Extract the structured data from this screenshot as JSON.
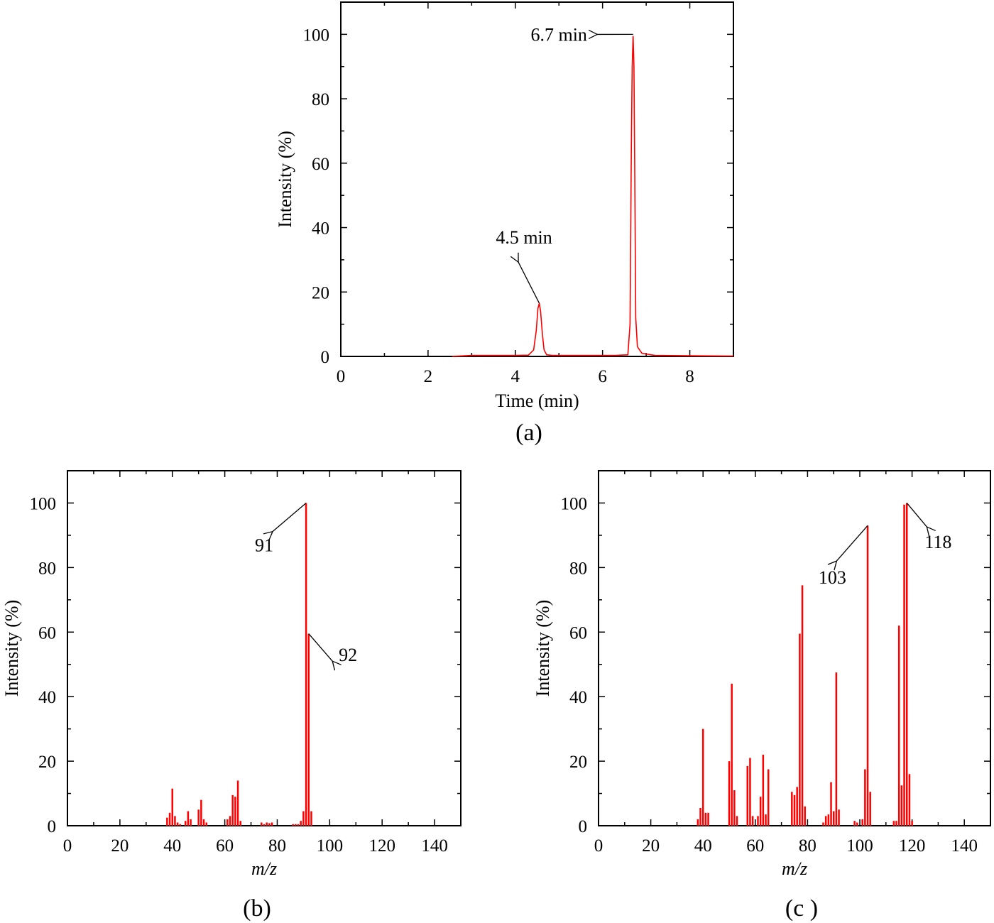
{
  "colors": {
    "series": "#ff0000",
    "axis": "#000000",
    "annotation": "#000000"
  },
  "chart_data": [
    {
      "id": "a",
      "type": "line",
      "panel_label": "(a)",
      "xlabel": "Time (min)",
      "ylabel": "Intensity (%)",
      "xlim": [
        0,
        9
      ],
      "ylim": [
        0,
        110
      ],
      "xticks": [
        0,
        2,
        4,
        6,
        8
      ],
      "yticks": [
        0,
        20,
        40,
        60,
        80,
        100
      ],
      "grid": false,
      "series": [
        {
          "x": [
            2.55,
            3.0,
            3.5,
            4.0,
            4.3,
            4.42,
            4.48,
            4.52,
            4.55,
            4.58,
            4.62,
            4.66,
            4.72,
            4.85,
            5.2,
            5.8,
            6.3,
            6.58,
            6.63,
            6.66,
            6.68,
            6.7,
            6.72,
            6.74,
            6.76,
            6.8,
            6.9,
            7.2,
            8.0,
            9.0
          ],
          "y": [
            0,
            0.3,
            0.3,
            0.3,
            0.4,
            2,
            8,
            15,
            16.5,
            14,
            7,
            2,
            0.5,
            0.3,
            0.3,
            0.3,
            0.3,
            0.5,
            10,
            65,
            90,
            99.5,
            90,
            55,
            12,
            3,
            1,
            0.3,
            0.2,
            0.1
          ]
        }
      ],
      "annotations": [
        {
          "text": "6.7 min",
          "x": 6.7,
          "y": 100,
          "text_x": 5.0,
          "text_y": 98
        },
        {
          "text": "4.5 min",
          "x": 4.55,
          "y": 16.5,
          "text_x": 4.2,
          "text_y": 35
        }
      ]
    },
    {
      "id": "b",
      "type": "bar",
      "panel_label": "(b)",
      "xlabel": "m/z",
      "ylabel": "Intensity (%)",
      "xlim": [
        0,
        150
      ],
      "ylim": [
        0,
        110
      ],
      "xticks": [
        0,
        20,
        40,
        60,
        80,
        100,
        120,
        140
      ],
      "yticks": [
        0,
        20,
        40,
        60,
        80,
        100
      ],
      "grid": false,
      "series": [
        {
          "x": [
            38,
            39,
            40,
            41,
            42,
            43,
            45,
            46,
            47,
            50,
            51,
            52,
            53,
            61,
            62,
            63,
            64,
            65,
            66,
            74,
            75,
            76,
            77,
            78,
            86,
            87,
            88,
            89,
            90,
            91,
            92,
            93
          ],
          "y": [
            2.5,
            4,
            11.5,
            3,
            1,
            0.5,
            1.5,
            4.5,
            2,
            5,
            8,
            2,
            1,
            2,
            3,
            9.5,
            9,
            14,
            1.5,
            1,
            0.5,
            1,
            0.8,
            1,
            0.5,
            0.5,
            0.5,
            1.5,
            4.5,
            100,
            59.5,
            4.5
          ]
        }
      ],
      "annotations": [
        {
          "text": "91",
          "x": 91,
          "y": 100,
          "text_x": 75,
          "text_y": 85
        },
        {
          "text": "92",
          "x": 92,
          "y": 59.5,
          "text_x": 107,
          "text_y": 51
        }
      ]
    },
    {
      "id": "c",
      "type": "bar",
      "panel_label": "(c )",
      "xlabel": "m/z",
      "ylabel": "Intensity (%)",
      "xlim": [
        0,
        150
      ],
      "ylim": [
        0,
        110
      ],
      "xticks": [
        0,
        20,
        40,
        60,
        80,
        100,
        120,
        140
      ],
      "yticks": [
        0,
        20,
        40,
        60,
        80,
        100
      ],
      "grid": false,
      "series": [
        {
          "x": [
            38,
            39,
            40,
            41,
            42,
            50,
            51,
            52,
            53,
            57,
            58,
            59,
            61,
            62,
            63,
            64,
            65,
            74,
            75,
            76,
            77,
            78,
            79,
            86,
            87,
            88,
            89,
            90,
            91,
            92,
            98,
            99,
            101,
            102,
            103,
            104,
            113,
            114,
            115,
            116,
            117,
            118,
            119,
            120
          ],
          "y": [
            2,
            5.5,
            30,
            4,
            4,
            20,
            44,
            11,
            3,
            18.5,
            21,
            3,
            3,
            9,
            22,
            3.5,
            17.5,
            10.5,
            9.5,
            12,
            59.5,
            74.5,
            6,
            1,
            3,
            3.5,
            13.5,
            4.5,
            47.5,
            5,
            1.5,
            1,
            2,
            17.5,
            93,
            10.5,
            1.5,
            1.5,
            62,
            12.5,
            99.5,
            100,
            16,
            1.5
          ]
        }
      ],
      "annotations": [
        {
          "text": "103",
          "x": 103,
          "y": 93,
          "text_x": 89.5,
          "text_y": 75
        },
        {
          "text": "118",
          "x": 118,
          "y": 100,
          "text_x": 130,
          "text_y": 86
        }
      ]
    }
  ]
}
